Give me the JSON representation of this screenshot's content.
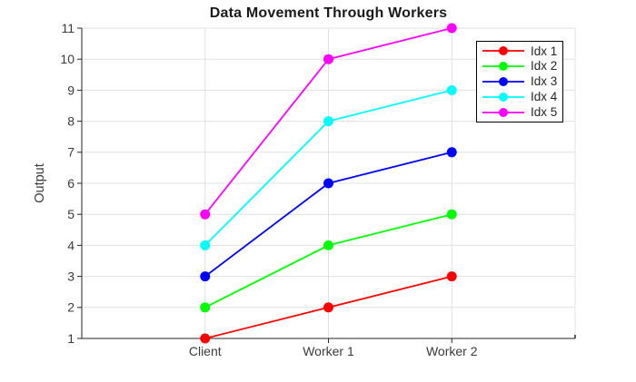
{
  "chart_data": {
    "type": "line",
    "title": "Data Movement Through Workers",
    "xlabel": "",
    "ylabel": "Output",
    "categories": [
      "Client",
      "Worker 1",
      "Worker 2"
    ],
    "series": [
      {
        "name": "Idx 1",
        "color": "#ff0000",
        "values": [
          1,
          2,
          3
        ]
      },
      {
        "name": "Idx 2",
        "color": "#00ff00",
        "values": [
          2,
          4,
          5
        ]
      },
      {
        "name": "Idx 3",
        "color": "#0000ff",
        "values": [
          3,
          6,
          7
        ]
      },
      {
        "name": "Idx 4",
        "color": "#00ffff",
        "values": [
          4,
          8,
          9
        ]
      },
      {
        "name": "Idx 5",
        "color": "#ff00ff",
        "values": [
          5,
          10,
          11
        ]
      }
    ],
    "ylim": [
      1,
      11
    ],
    "yticks": [
      1,
      2,
      3,
      4,
      5,
      6,
      7,
      8,
      9,
      10,
      11
    ],
    "xlim": [
      0,
      4
    ],
    "xtick_positions": [
      1,
      2,
      3
    ],
    "grid": true,
    "legend_position": "top-right",
    "marker": "filled-circle",
    "axis_color": "#262626",
    "grid_color": "#e0e0e0",
    "tick_label_color": "#3b3b3b",
    "title_color": "#1a1a1a",
    "background_color": "#ffffff"
  }
}
